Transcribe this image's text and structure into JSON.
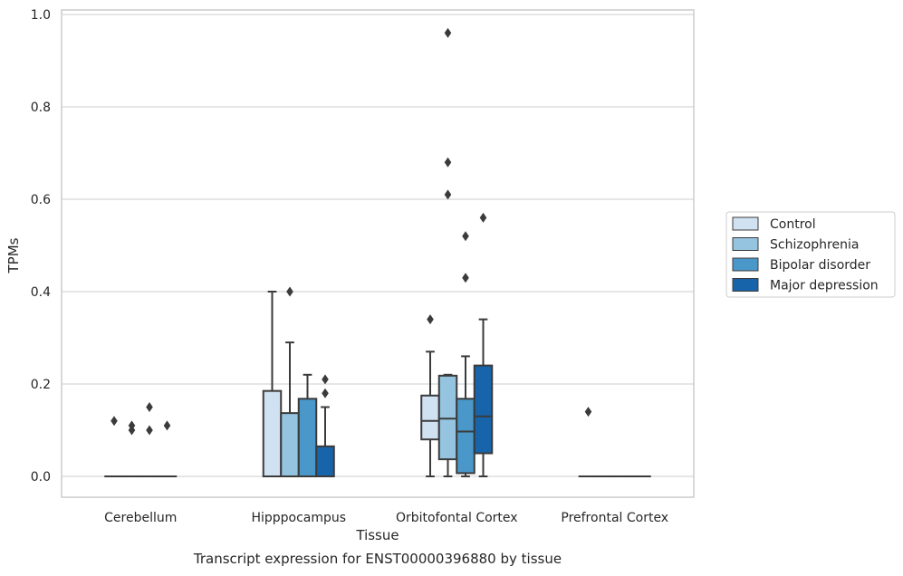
{
  "chart_data": {
    "type": "box",
    "title": "",
    "caption": "Transcript expression for ENST00000396880 by tissue",
    "xlabel": "Tissue",
    "ylabel": "TPMs",
    "ylim": [
      -0.045,
      1.01
    ],
    "yticks": [
      "0.0",
      "0.2",
      "0.4",
      "0.6",
      "0.8",
      "1.0"
    ],
    "ytick_values": [
      0.0,
      0.2,
      0.4,
      0.6,
      0.8,
      1.0
    ],
    "grid": "horizontal",
    "legend_position": "right",
    "categories": [
      "Cerebellum",
      "Hipppocampus",
      "Orbitofontal Cortex",
      "Prefrontal Cortex"
    ],
    "series": [
      {
        "name": "Control",
        "color": "#d0e1f2",
        "boxes": [
          {
            "whislo": 0,
            "q1": 0,
            "med": 0,
            "q3": 0,
            "whishi": 0,
            "fliers": [
              0.12
            ]
          },
          {
            "whislo": 0,
            "q1": 0,
            "med": 0,
            "q3": 0.185,
            "whishi": 0.4,
            "fliers": []
          },
          {
            "whislo": 0,
            "q1": 0.08,
            "med": 0.12,
            "q3": 0.175,
            "whishi": 0.27,
            "fliers": [
              0.34
            ]
          },
          {
            "whislo": 0,
            "q1": 0,
            "med": 0,
            "q3": 0,
            "whishi": 0,
            "fliers": [
              0.14
            ]
          }
        ]
      },
      {
        "name": "Schizophrenia",
        "color": "#94c4df",
        "boxes": [
          {
            "whislo": 0,
            "q1": 0,
            "med": 0,
            "q3": 0,
            "whishi": 0,
            "fliers": [
              0.1,
              0.11
            ]
          },
          {
            "whislo": 0,
            "q1": 0,
            "med": 0,
            "q3": 0.137,
            "whishi": 0.29,
            "fliers": [
              0.4
            ]
          },
          {
            "whislo": 0,
            "q1": 0.037,
            "med": 0.125,
            "q3": 0.218,
            "whishi": 0.22,
            "fliers": [
              0.96,
              0.68,
              0.61
            ]
          },
          {
            "whislo": 0,
            "q1": 0,
            "med": 0,
            "q3": 0,
            "whishi": 0,
            "fliers": []
          }
        ]
      },
      {
        "name": "Bipolar disorder",
        "color": "#4a98c9",
        "boxes": [
          {
            "whislo": 0,
            "q1": 0,
            "med": 0,
            "q3": 0,
            "whishi": 0,
            "fliers": [
              0.1,
              0.15
            ]
          },
          {
            "whislo": 0,
            "q1": 0,
            "med": 0,
            "q3": 0.168,
            "whishi": 0.22,
            "fliers": []
          },
          {
            "whislo": 0,
            "q1": 0.007,
            "med": 0.097,
            "q3": 0.168,
            "whishi": 0.26,
            "fliers": [
              0.52,
              0.43
            ]
          },
          {
            "whislo": 0,
            "q1": 0,
            "med": 0,
            "q3": 0,
            "whishi": 0,
            "fliers": []
          }
        ]
      },
      {
        "name": "Major depression",
        "color": "#1764ab",
        "boxes": [
          {
            "whislo": 0,
            "q1": 0,
            "med": 0,
            "q3": 0,
            "whishi": 0,
            "fliers": [
              0.11
            ]
          },
          {
            "whislo": 0,
            "q1": 0,
            "med": 0,
            "q3": 0.065,
            "whishi": 0.15,
            "fliers": [
              0.21,
              0.18
            ]
          },
          {
            "whislo": 0,
            "q1": 0.05,
            "med": 0.13,
            "q3": 0.24,
            "whishi": 0.34,
            "fliers": [
              0.56
            ]
          },
          {
            "whislo": 0,
            "q1": 0,
            "med": 0,
            "q3": 0,
            "whishi": 0,
            "fliers": []
          }
        ]
      }
    ]
  }
}
